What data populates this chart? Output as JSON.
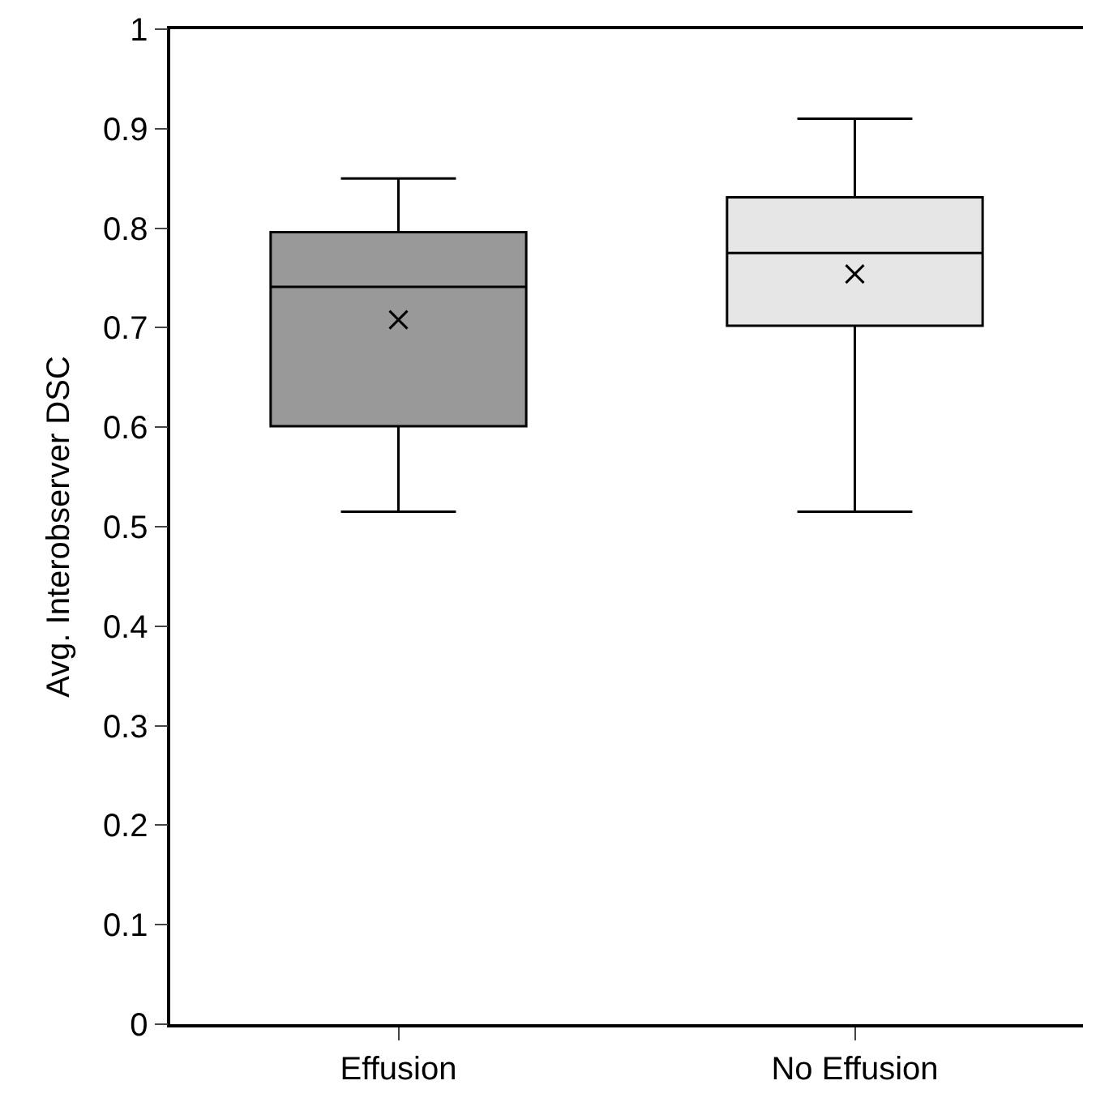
{
  "chart_data": {
    "type": "box",
    "ylabel": "Avg. Interobserver DSC",
    "categories": [
      "Effusion",
      "No Effusion"
    ],
    "boxes": [
      {
        "low": 0.515,
        "q1": 0.601,
        "median": 0.741,
        "q3": 0.796,
        "high": 0.85,
        "mean": 0.708
      },
      {
        "low": 0.515,
        "q1": 0.702,
        "median": 0.775,
        "q3": 0.831,
        "high": 0.91,
        "mean": 0.754
      }
    ],
    "colors": [
      "#999999",
      "#e6e6e6"
    ],
    "ylim": [
      0,
      1
    ],
    "yticks": [
      0,
      0.1,
      0.2,
      0.3,
      0.4,
      0.5,
      0.6,
      0.7,
      0.8,
      0.9,
      1
    ],
    "marker": "cross"
  }
}
